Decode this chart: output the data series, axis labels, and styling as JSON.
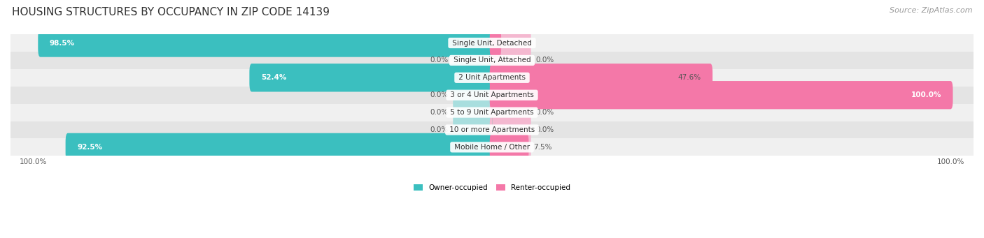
{
  "title": "HOUSING STRUCTURES BY OCCUPANCY IN ZIP CODE 14139",
  "source": "Source: ZipAtlas.com",
  "categories": [
    "Single Unit, Detached",
    "Single Unit, Attached",
    "2 Unit Apartments",
    "3 or 4 Unit Apartments",
    "5 to 9 Unit Apartments",
    "10 or more Apartments",
    "Mobile Home / Other"
  ],
  "owner_pct": [
    98.5,
    0.0,
    52.4,
    0.0,
    0.0,
    0.0,
    92.5
  ],
  "renter_pct": [
    1.5,
    0.0,
    47.6,
    100.0,
    0.0,
    0.0,
    7.5
  ],
  "owner_color": "#3bbfbf",
  "owner_color_light": "#a8dede",
  "renter_color": "#f478a8",
  "renter_color_light": "#f4b8d0",
  "owner_label": "Owner-occupied",
  "renter_label": "Renter-occupied",
  "row_bg_colors": [
    "#f0f0f0",
    "#e4e4e4"
  ],
  "title_fontsize": 11,
  "source_fontsize": 8,
  "cat_label_fontsize": 7.5,
  "bar_label_fontsize": 7.5,
  "axis_label_fontsize": 7.5,
  "figsize": [
    14.06,
    3.41
  ],
  "dpi": 100
}
